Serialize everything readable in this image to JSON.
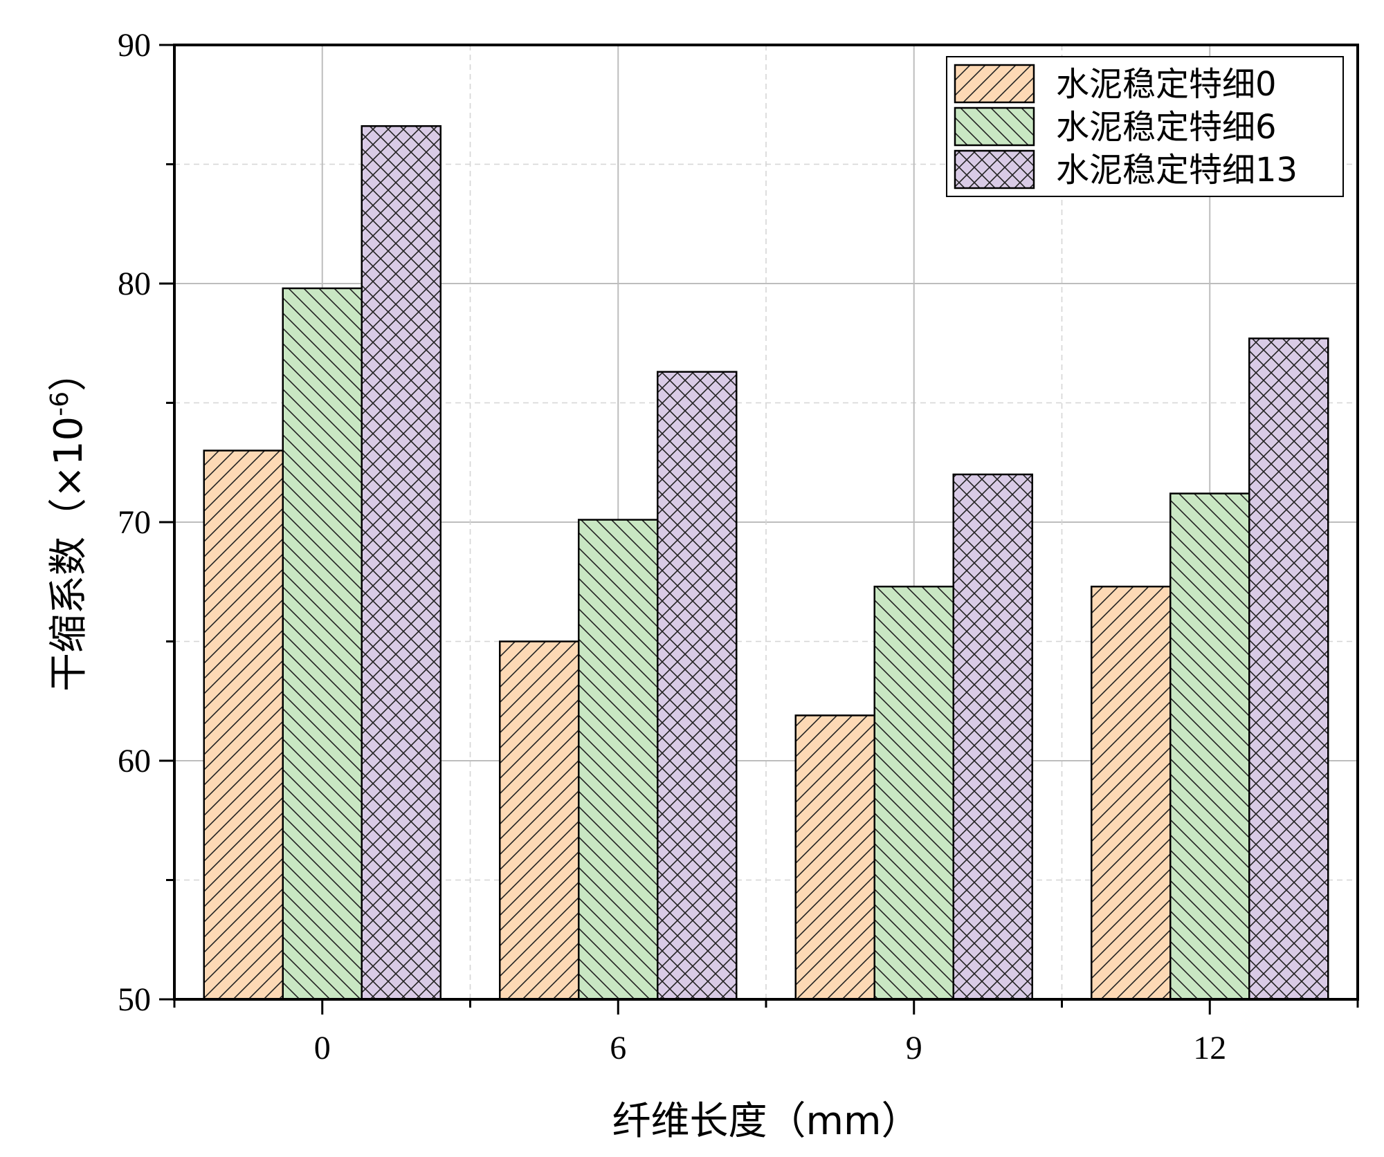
{
  "chart_data": {
    "type": "bar",
    "title": "",
    "xlabel": "纤维长度（mm）",
    "ylabel_main": "干缩系数（×10",
    "ylabel_sup": "-6",
    "ylabel_close": "）",
    "ylabel": "干缩系数（×10-6）",
    "categories": [
      "0",
      "6",
      "9",
      "12"
    ],
    "ylim": [
      50,
      90
    ],
    "yticks": [
      "50",
      "60",
      "70",
      "80",
      "90"
    ],
    "grid": true,
    "legend_position": "top-right",
    "series": [
      {
        "name": "水泥稳定特细0",
        "values": [
          73.0,
          65.0,
          61.9,
          67.3
        ],
        "color": "#fdd9b5",
        "pattern": "forward-hatch"
      },
      {
        "name": "水泥稳定特细6",
        "values": [
          79.8,
          70.1,
          67.3,
          71.2
        ],
        "color": "#c9e7c3",
        "pattern": "back-hatch"
      },
      {
        "name": "水泥稳定特细13",
        "values": [
          86.6,
          76.3,
          72.0,
          77.7
        ],
        "color": "#d9cbe6",
        "pattern": "cross-hatch"
      }
    ]
  }
}
